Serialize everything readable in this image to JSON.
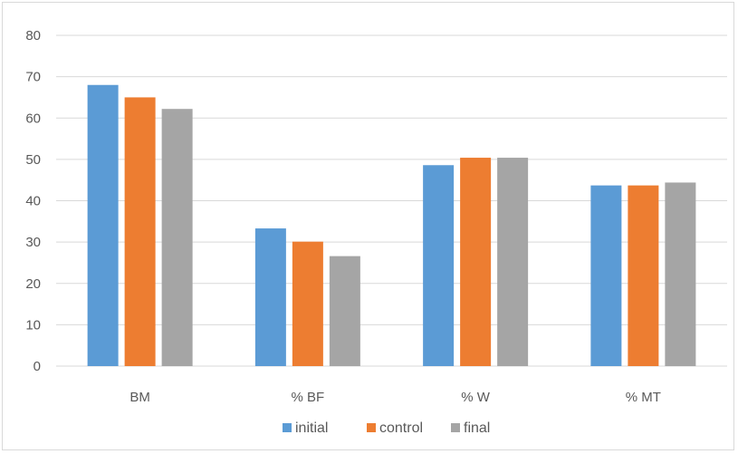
{
  "chart_data": {
    "type": "bar",
    "categories": [
      "BM",
      "% BF",
      "% W",
      "% MT"
    ],
    "series": [
      {
        "name": "initial",
        "values": [
          68,
          33.3,
          48.6,
          43.7
        ],
        "color": "#5b9bd5"
      },
      {
        "name": "control",
        "values": [
          65,
          30.1,
          50.4,
          43.7
        ],
        "color": "#ed7d31"
      },
      {
        "name": "final",
        "values": [
          62.2,
          26.6,
          50.4,
          44.4
        ],
        "color": "#a5a5a5"
      }
    ],
    "ylim": [
      0,
      80
    ],
    "yticks": [
      0,
      10,
      20,
      30,
      40,
      50,
      60,
      70,
      80
    ],
    "grid": true,
    "legend_position": "bottom"
  }
}
